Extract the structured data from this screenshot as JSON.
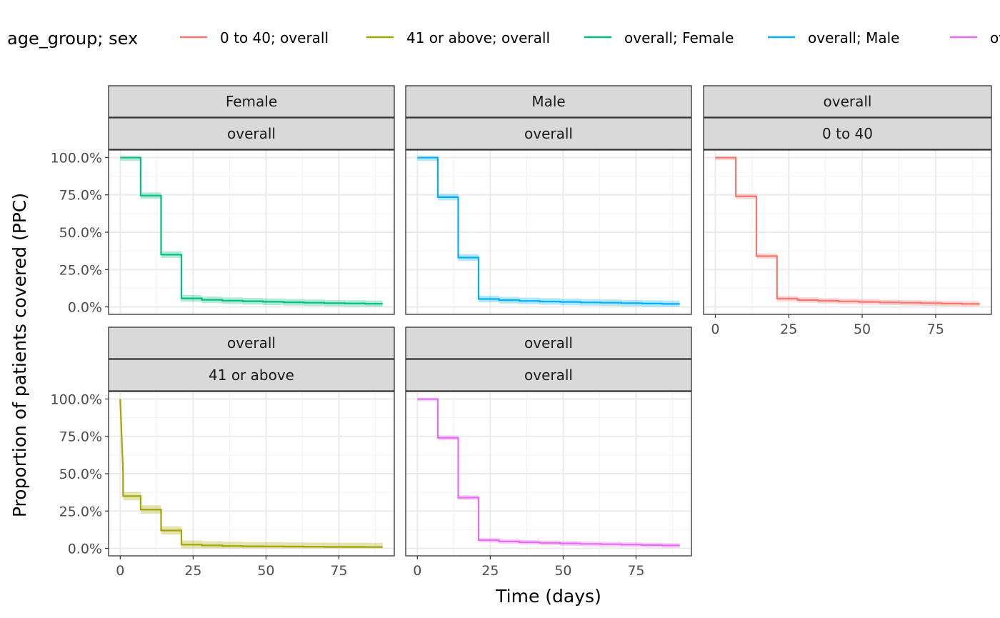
{
  "chart_data": {
    "type": "line",
    "xlabel": "Time (days)",
    "ylabel": "Proportion of patients covered (PPC)",
    "xlim": [
      -4,
      94
    ],
    "ylim": [
      -0.05,
      1.05
    ],
    "x_ticks": [
      0,
      25,
      50,
      75
    ],
    "y_ticks": [
      0,
      0.25,
      0.5,
      0.75,
      1.0
    ],
    "y_tick_labels": [
      "0.0%",
      "25.0%",
      "50.0%",
      "75.0%",
      "100.0%"
    ],
    "grid": true,
    "legend": {
      "title": "age_group; sex",
      "position": "top",
      "entries": [
        {
          "label": "0 to 40; overall",
          "color": "#F8766D"
        },
        {
          "label": "41 or above; overall",
          "color": "#A3A500"
        },
        {
          "label": "overall; Female",
          "color": "#00BF7D"
        },
        {
          "label": "overall; Male",
          "color": "#00B0F6"
        },
        {
          "label": "overall; overall",
          "color": "#E76BF3"
        }
      ]
    },
    "facets": [
      {
        "strip_top": "Female",
        "strip_bottom": "overall",
        "color": "#00BF7D",
        "x": [
          0,
          7,
          7,
          14,
          14,
          21,
          21,
          28,
          28,
          35,
          35,
          42,
          42,
          49,
          49,
          56,
          56,
          63,
          63,
          70,
          70,
          77,
          77,
          84,
          84,
          90
        ],
        "y": [
          1.0,
          1.0,
          0.745,
          0.745,
          0.35,
          0.35,
          0.057,
          0.057,
          0.047,
          0.047,
          0.042,
          0.042,
          0.038,
          0.038,
          0.034,
          0.034,
          0.031,
          0.031,
          0.028,
          0.028,
          0.025,
          0.025,
          0.023,
          0.023,
          0.021,
          0.021
        ],
        "band": 0.022
      },
      {
        "strip_top": "Male",
        "strip_bottom": "overall",
        "color": "#00B0F6",
        "x": [
          0,
          7,
          7,
          14,
          14,
          21,
          21,
          28,
          28,
          35,
          35,
          42,
          42,
          49,
          49,
          56,
          56,
          63,
          63,
          70,
          70,
          77,
          77,
          84,
          84,
          90
        ],
        "y": [
          1.0,
          1.0,
          0.735,
          0.735,
          0.33,
          0.33,
          0.053,
          0.053,
          0.045,
          0.045,
          0.04,
          0.04,
          0.036,
          0.036,
          0.033,
          0.033,
          0.03,
          0.03,
          0.028,
          0.028,
          0.025,
          0.025,
          0.022,
          0.022,
          0.02,
          0.02
        ],
        "band": 0.022
      },
      {
        "strip_top": "overall",
        "strip_bottom": "0 to 40",
        "color": "#F8766D",
        "x": [
          0,
          7,
          7,
          14,
          14,
          21,
          21,
          28,
          28,
          35,
          35,
          42,
          42,
          49,
          49,
          56,
          56,
          63,
          63,
          70,
          70,
          77,
          77,
          84,
          84,
          90
        ],
        "y": [
          1.0,
          1.0,
          0.74,
          0.74,
          0.34,
          0.34,
          0.055,
          0.055,
          0.046,
          0.046,
          0.041,
          0.041,
          0.037,
          0.037,
          0.033,
          0.033,
          0.03,
          0.03,
          0.028,
          0.028,
          0.025,
          0.025,
          0.022,
          0.022,
          0.02,
          0.02
        ],
        "band": 0.018
      },
      {
        "strip_top": "overall",
        "strip_bottom": "41 or above",
        "color": "#A3A500",
        "x": [
          0,
          1,
          1,
          7,
          7,
          14,
          14,
          21,
          21,
          28,
          28,
          35,
          35,
          42,
          42,
          49,
          49,
          56,
          56,
          63,
          63,
          70,
          70,
          77,
          77,
          84,
          84,
          90
        ],
        "y": [
          1.0,
          0.5,
          0.35,
          0.35,
          0.26,
          0.26,
          0.12,
          0.12,
          0.025,
          0.025,
          0.02,
          0.02,
          0.016,
          0.016,
          0.014,
          0.014,
          0.013,
          0.013,
          0.012,
          0.012,
          0.011,
          0.011,
          0.01,
          0.01,
          0.01,
          0.01,
          0.009,
          0.009
        ],
        "band": 0.028
      },
      {
        "strip_top": "overall",
        "strip_bottom": "overall",
        "color": "#E76BF3",
        "x": [
          0,
          7,
          7,
          14,
          14,
          21,
          21,
          28,
          28,
          35,
          35,
          42,
          42,
          49,
          49,
          56,
          56,
          63,
          63,
          70,
          70,
          77,
          77,
          84,
          84,
          90
        ],
        "y": [
          1.0,
          1.0,
          0.74,
          0.74,
          0.34,
          0.34,
          0.055,
          0.055,
          0.046,
          0.046,
          0.041,
          0.041,
          0.037,
          0.037,
          0.033,
          0.033,
          0.03,
          0.03,
          0.028,
          0.028,
          0.025,
          0.025,
          0.022,
          0.022,
          0.02,
          0.02
        ],
        "band": 0.016
      }
    ]
  }
}
